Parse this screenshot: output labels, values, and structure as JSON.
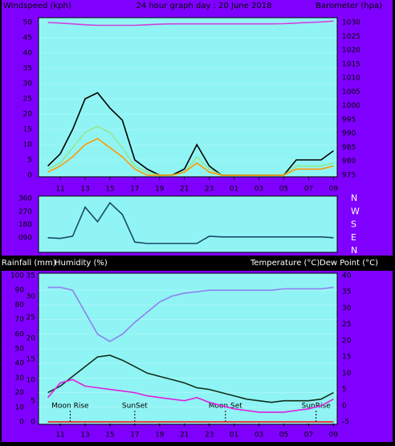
{
  "chart_data": [
    {
      "type": "line",
      "title": "24 hour graph day : 20 June 2018",
      "y_label": "Windspeed (kph)",
      "y2_label": "Barometer (hpa)",
      "x": [
        10,
        11,
        12,
        13,
        14,
        15,
        16,
        17,
        18,
        19,
        20,
        21,
        22,
        23,
        24,
        25,
        26,
        27,
        28,
        29,
        30,
        31,
        32,
        33
      ],
      "xlim": [
        9.25,
        33.3
      ],
      "xticks": [
        11,
        13,
        15,
        17,
        19,
        21,
        23,
        {
          "value": 25,
          "label": "01"
        },
        {
          "value": 27,
          "label": "03"
        },
        {
          "value": 29,
          "label": "05"
        },
        {
          "value": 31,
          "label": "07"
        },
        {
          "value": 33,
          "label": "09"
        }
      ],
      "ylim": [
        0,
        50
      ],
      "yticks": [
        0,
        5,
        10,
        15,
        20,
        25,
        30,
        35,
        40,
        45,
        50
      ],
      "y2lim": [
        975,
        1030
      ],
      "y2ticks": [
        975,
        980,
        985,
        990,
        995,
        1000,
        1005,
        1010,
        1015,
        1020,
        1025,
        1030
      ],
      "y2color": "#ff30ff",
      "grid": true,
      "series": [
        {
          "color": "#000000",
          "values": [
            3,
            7,
            15,
            25,
            27,
            22,
            18,
            5,
            2,
            0,
            0,
            2,
            10,
            3,
            0,
            0,
            0,
            0,
            0,
            0,
            5,
            5,
            5,
            8
          ]
        },
        {
          "color": "#90e890",
          "values": [
            2,
            4,
            9,
            14,
            16,
            14,
            9,
            3,
            1,
            0,
            0,
            1,
            6,
            2,
            0,
            0,
            0,
            0,
            0,
            0,
            3,
            3,
            3,
            4
          ]
        },
        {
          "color": "#ff9900",
          "values": [
            1,
            3,
            6,
            10,
            12,
            9,
            6,
            2,
            0,
            0,
            0,
            1,
            4,
            1,
            0,
            0,
            0,
            0,
            0,
            0,
            2,
            2,
            2,
            3
          ]
        },
        {
          "color": "#d040e0",
          "axis": "y2",
          "values": [
            1030,
            1029.8,
            1029.5,
            1029.2,
            1029,
            1029,
            1029,
            1029,
            1029.2,
            1029.4,
            1029.5,
            1029.5,
            1029.5,
            1029.5,
            1029.5,
            1029.5,
            1029.5,
            1029.5,
            1029.5,
            1029.6,
            1029.8,
            1030,
            1030.2,
            1030.5
          ]
        }
      ]
    },
    {
      "type": "line",
      "x": [
        10,
        11,
        12,
        13,
        14,
        15,
        16,
        17,
        18,
        19,
        20,
        21,
        22,
        23,
        24,
        25,
        26,
        27,
        28,
        29,
        30,
        31,
        32,
        33
      ],
      "xlim": [
        9.25,
        33.3
      ],
      "ylim": [
        0,
        360
      ],
      "yticks": [
        {
          "value": 90,
          "label": "090"
        },
        180,
        270,
        360
      ],
      "y2ticks": [
        {
          "value": 360,
          "label": "N"
        },
        {
          "value": 270,
          "label": "W"
        },
        {
          "value": 180,
          "label": "S"
        },
        {
          "value": 90,
          "label": "E"
        },
        {
          "value": 0,
          "label": "N"
        }
      ],
      "series": [
        {
          "color": "#1a4a6a",
          "values": [
            90,
            85,
            100,
            300,
            200,
            330,
            250,
            60,
            50,
            50,
            50,
            50,
            50,
            100,
            95,
            95,
            95,
            95,
            95,
            95,
            95,
            95,
            95,
            90
          ]
        }
      ]
    },
    {
      "type": "line",
      "x": [
        10,
        11,
        12,
        13,
        14,
        15,
        16,
        17,
        18,
        19,
        20,
        21,
        22,
        23,
        24,
        25,
        26,
        27,
        28,
        29,
        30,
        31,
        32,
        33
      ],
      "xlim": [
        9.25,
        33.3
      ],
      "xticks": [
        11,
        13,
        15,
        17,
        19,
        21,
        23,
        {
          "value": 25,
          "label": "01"
        },
        {
          "value": 27,
          "label": "03"
        },
        {
          "value": 29,
          "label": "05"
        },
        {
          "value": 31,
          "label": "07"
        },
        {
          "value": 33,
          "label": "09"
        }
      ],
      "ylim": [
        0,
        100
      ],
      "yticks": [
        0,
        10,
        20,
        30,
        40,
        50,
        60,
        70,
        80,
        90,
        100
      ],
      "y2lim": [
        -5,
        40
      ],
      "y2ticks": [
        -5,
        0,
        5,
        10,
        15,
        20,
        25,
        30,
        35,
        40
      ],
      "y3lim": [
        0,
        35
      ],
      "y3ticks": [
        0,
        5,
        10,
        15,
        20,
        25,
        30,
        35
      ],
      "y3color": "#ff0000",
      "grid": true,
      "series": [
        {
          "name": "Rainfall (mm)",
          "color": "#ff0000",
          "axis": "y3",
          "values": [
            0,
            0,
            0,
            0,
            0,
            0,
            0,
            0,
            0,
            0,
            0,
            0,
            0,
            0,
            0,
            0,
            0,
            0,
            0,
            0,
            0,
            0,
            0,
            0
          ]
        },
        {
          "name": "Humidity (%)",
          "color": "#9080f0",
          "values": [
            92,
            92,
            90,
            75,
            60,
            55,
            60,
            68,
            75,
            82,
            86,
            88,
            89,
            90,
            90,
            90,
            90,
            90,
            90,
            91,
            91,
            91,
            91,
            92
          ]
        },
        {
          "name": "Temperature (°C)",
          "color": "#10301a",
          "axis": "y2",
          "values": [
            4,
            6,
            9,
            12,
            15,
            15.5,
            14,
            12,
            10,
            9,
            8,
            7,
            5.5,
            5,
            4,
            3,
            2,
            1.5,
            1,
            1.5,
            1.5,
            1.5,
            2,
            4
          ]
        },
        {
          "name": "Dew Point (°C)",
          "color": "#e020e0",
          "axis": "y2",
          "values": [
            2.5,
            7,
            8,
            6,
            5.5,
            5,
            4.5,
            4,
            3,
            2.5,
            2,
            1.5,
            2.5,
            1,
            0,
            -1,
            -1.5,
            -2,
            -2,
            -2,
            -1.5,
            -1,
            0,
            2
          ]
        }
      ],
      "events": [
        {
          "label": "Moon Rise",
          "x": 11.8
        },
        {
          "label": "SunSet",
          "x": 17
        },
        {
          "label": "Moon Set",
          "x": 24.3
        },
        {
          "label": "SunRise",
          "x": 31.6
        }
      ]
    }
  ]
}
